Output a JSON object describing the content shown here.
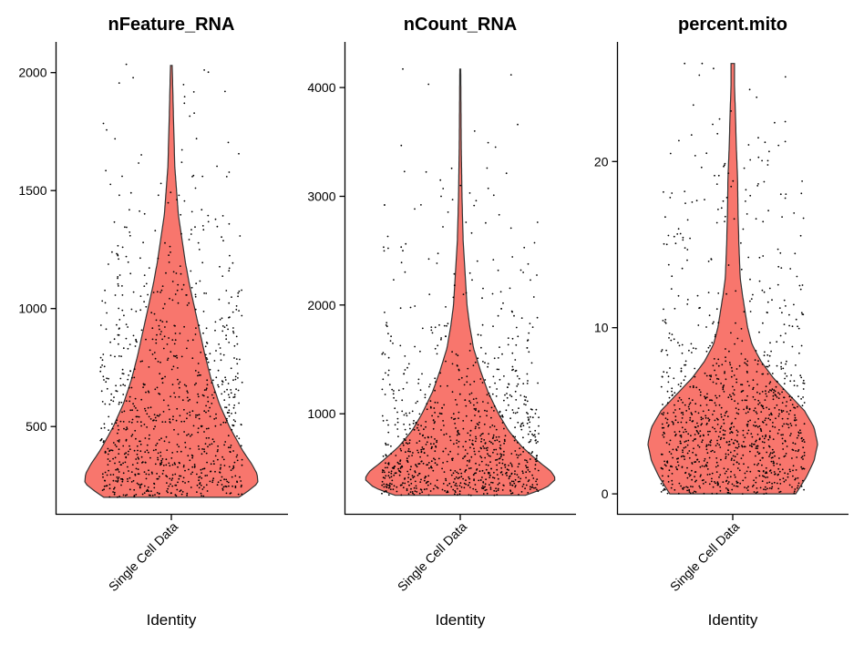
{
  "chart_data": [
    {
      "type": "violin",
      "title": "nFeature_RNA",
      "xlabel": "Identity",
      "ylabel": "",
      "category": "Single Cell Data",
      "fill": "#F8766D",
      "yticks": [
        500,
        1000,
        1500,
        2000
      ],
      "ylim": [
        130,
        2130
      ],
      "data_range": [
        200,
        2030
      ],
      "jitter_points": 950,
      "density_profile": [
        [
          200,
          0.78
        ],
        [
          230,
          0.9
        ],
        [
          260,
          1.0
        ],
        [
          300,
          0.99
        ],
        [
          340,
          0.93
        ],
        [
          400,
          0.82
        ],
        [
          500,
          0.67
        ],
        [
          600,
          0.55
        ],
        [
          700,
          0.46
        ],
        [
          800,
          0.39
        ],
        [
          900,
          0.33
        ],
        [
          1000,
          0.27
        ],
        [
          1100,
          0.21
        ],
        [
          1200,
          0.16
        ],
        [
          1300,
          0.12
        ],
        [
          1400,
          0.08
        ],
        [
          1500,
          0.06
        ],
        [
          1600,
          0.04
        ],
        [
          1800,
          0.025
        ],
        [
          2030,
          0.01
        ]
      ],
      "notable_points": [
        [
          2035,
          -0.52
        ],
        [
          1920,
          0.62
        ],
        [
          1870,
          0.15
        ],
        [
          1720,
          0.29
        ],
        [
          1620,
          0.12
        ],
        [
          1560,
          0.36
        ],
        [
          1530,
          -0.12
        ],
        [
          1480,
          -0.15
        ]
      ]
    },
    {
      "type": "violin",
      "title": "nCount_RNA",
      "xlabel": "Identity",
      "ylabel": "",
      "category": "Single Cell Data",
      "fill": "#F8766D",
      "yticks": [
        1000,
        2000,
        3000,
        4000
      ],
      "ylim": [
        80,
        4420
      ],
      "data_range": [
        250,
        4170
      ],
      "jitter_points": 1000,
      "density_profile": [
        [
          250,
          0.68
        ],
        [
          320,
          0.9
        ],
        [
          400,
          1.0
        ],
        [
          470,
          0.95
        ],
        [
          560,
          0.82
        ],
        [
          700,
          0.64
        ],
        [
          850,
          0.5
        ],
        [
          1000,
          0.4
        ],
        [
          1200,
          0.29
        ],
        [
          1400,
          0.21
        ],
        [
          1600,
          0.14
        ],
        [
          1800,
          0.1
        ],
        [
          2000,
          0.07
        ],
        [
          2300,
          0.05
        ],
        [
          2600,
          0.03
        ],
        [
          3000,
          0.018
        ],
        [
          3500,
          0.01
        ],
        [
          4170,
          0.005
        ]
      ],
      "notable_points": [
        [
          4170,
          -0.6
        ],
        [
          3660,
          0.6
        ],
        [
          3600,
          0.15
        ],
        [
          3260,
          0.28
        ],
        [
          3030,
          0.1
        ],
        [
          3010,
          0.35
        ],
        [
          3000,
          -0.2
        ],
        [
          2970,
          -0.08
        ],
        [
          2500,
          -0.6
        ]
      ]
    },
    {
      "type": "violin",
      "title": "percent.mito",
      "xlabel": "Identity",
      "ylabel": "",
      "category": "Single Cell Data",
      "fill": "#F8766D",
      "yticks": [
        0,
        10,
        20
      ],
      "ylim": [
        -1.2,
        27.2
      ],
      "data_range": [
        0,
        25.9
      ],
      "jitter_points": 1100,
      "density_profile": [
        [
          0,
          0.72
        ],
        [
          1,
          0.84
        ],
        [
          2,
          0.93
        ],
        [
          3,
          0.97
        ],
        [
          4,
          0.93
        ],
        [
          5,
          0.82
        ],
        [
          6,
          0.64
        ],
        [
          7,
          0.46
        ],
        [
          8,
          0.32
        ],
        [
          9,
          0.22
        ],
        [
          10,
          0.17
        ],
        [
          11,
          0.14
        ],
        [
          12,
          0.11
        ],
        [
          13,
          0.085
        ],
        [
          15,
          0.07
        ],
        [
          17,
          0.06
        ],
        [
          19,
          0.055
        ],
        [
          21,
          0.04
        ],
        [
          23,
          0.03
        ],
        [
          24.5,
          0.02
        ],
        [
          25.9,
          0.02
        ]
      ],
      "notable_points": [
        [
          25.9,
          -0.55
        ],
        [
          25.9,
          -0.35
        ],
        [
          25.6,
          -0.22
        ],
        [
          23.4,
          -0.45
        ],
        [
          22.4,
          0.6
        ],
        [
          21.2,
          0.6
        ],
        [
          20.5,
          -0.3
        ],
        [
          20.1,
          0.2
        ],
        [
          19.8,
          0.4
        ],
        [
          19.3,
          -0.05
        ],
        [
          18.3,
          0.15
        ],
        [
          17.8,
          0.6
        ],
        [
          16.9,
          0.7
        ]
      ]
    }
  ]
}
